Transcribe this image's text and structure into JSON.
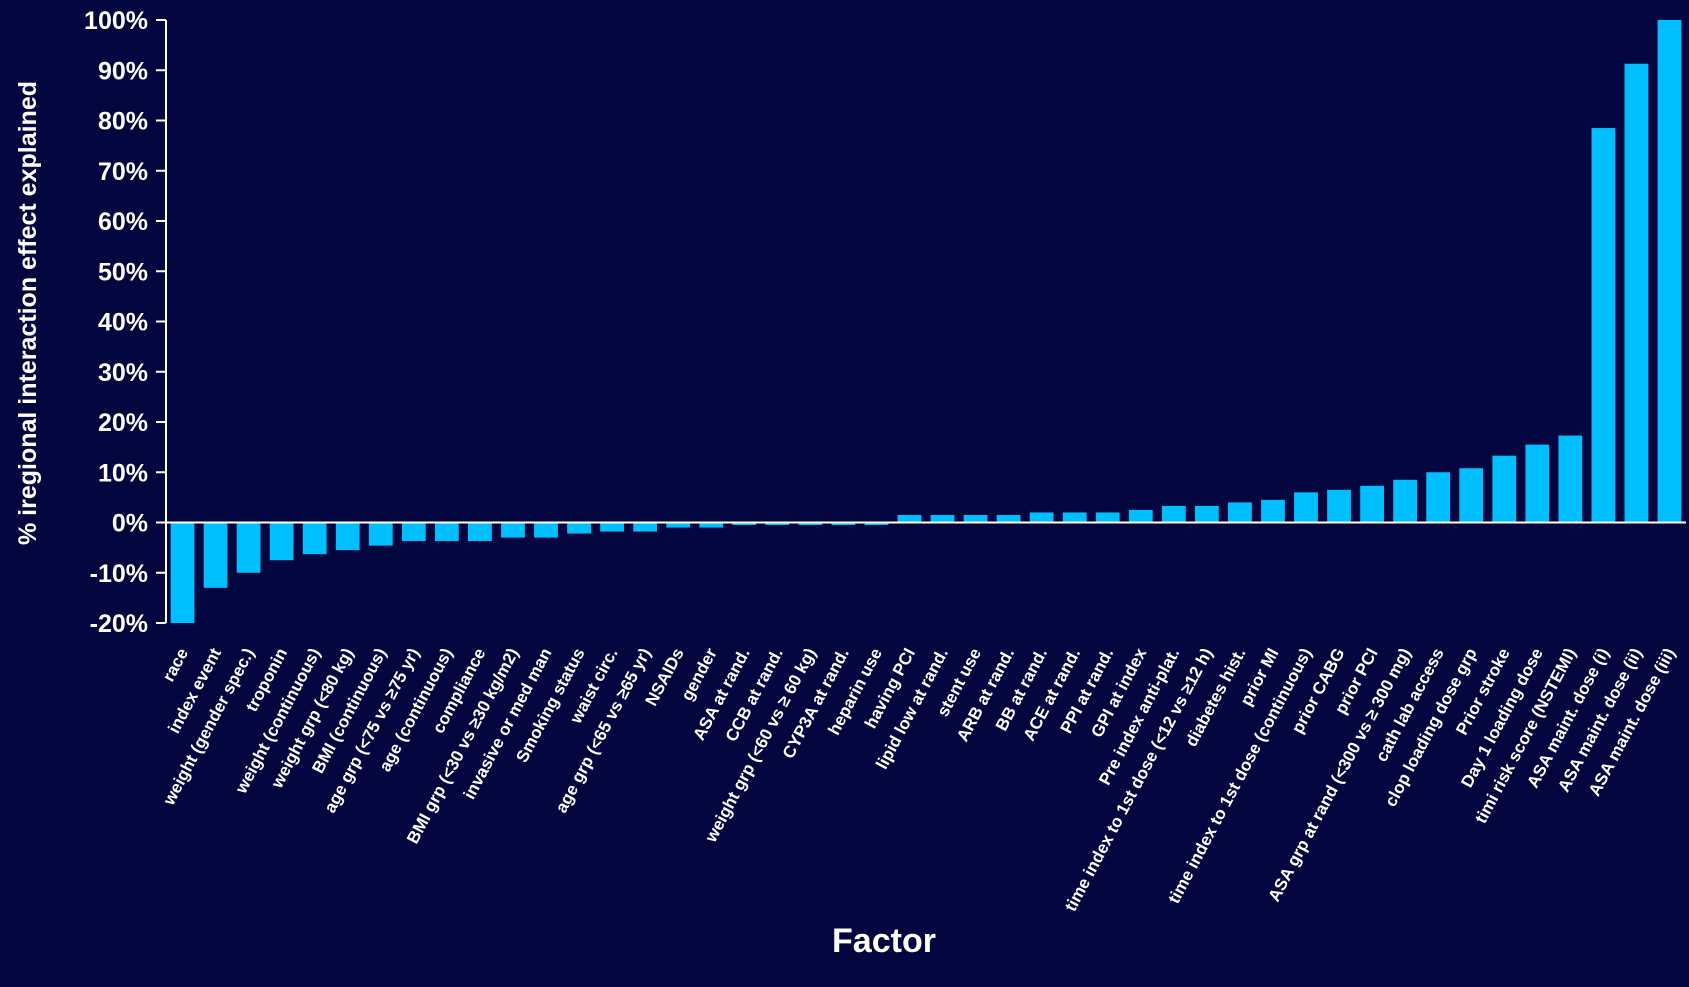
{
  "chart_data": {
    "type": "bar",
    "title": "",
    "xlabel": "Factor",
    "ylabel": "% iregional interaction effect explained",
    "ylim": [
      -20,
      100
    ],
    "y_ticks": [
      "-20%",
      "-10%",
      "0%",
      "10%",
      "20%",
      "30%",
      "40%",
      "50%",
      "60%",
      "70%",
      "80%",
      "90%",
      "100%"
    ],
    "y_tick_values": [
      -20,
      -10,
      0,
      10,
      20,
      30,
      40,
      50,
      60,
      70,
      80,
      90,
      100
    ],
    "grid": false,
    "bar_color": "#00bfff",
    "axis_color": "#ffffff",
    "background": "#04063f",
    "categories": [
      "race",
      "index event",
      "weight (gender spec.)",
      "troponin",
      "weight (continuous)",
      "weight grp (<80 kg)",
      "BMI (continuous)",
      "age grp (<75 vs ≥75 yr)",
      "age (continuous)",
      "compliance",
      "BMI grp (<30 vs ≥30 kg/m2)",
      "invasive or med man",
      "Smoking status",
      "waist circ.",
      "age grp (<65 vs ≥65 yr)",
      "NSAIDs",
      "gender",
      "ASA at rand.",
      "CCB at rand.",
      "weight grp (<60 vs ≥ 60 kg)",
      "CYP3A at rand.",
      "heparin use",
      "having PCI",
      "lipid low at rand.",
      "stent use",
      "ARB at rand.",
      "BB at rand.",
      "ACE at rand.",
      "PPI at rand.",
      "GPI at index",
      "Pre index anti-plat.",
      "time index to 1st dose (<12 vs ≥12 h)",
      "diabetes hist.",
      "prior MI",
      "time index to 1st dose (continuous)",
      "prior CABG",
      "prior PCI",
      "ASA grp at rand (<300 vs ≥ 300 mg)",
      "cath lab access",
      "clop loading dose grp",
      "Prior stroke",
      "Day 1 loading dose",
      "timi risk score (NSTEMI)",
      "ASA maint. dose (i)",
      "ASA maint. dose (ii)",
      "ASA maint. dose (iii)"
    ],
    "values": [
      -20,
      -13,
      -10,
      -7.5,
      -6.3,
      -5.5,
      -4.6,
      -3.7,
      -3.7,
      -3.7,
      -3,
      -3,
      -2.2,
      -1.8,
      -1.8,
      -1,
      -1,
      -0.5,
      -0.5,
      -0.5,
      -0.5,
      -0.5,
      1.5,
      1.5,
      1.5,
      1.5,
      2,
      2,
      2,
      2.5,
      3.3,
      3.3,
      4,
      4.5,
      6,
      6.5,
      7.3,
      8.5,
      10,
      10.8,
      13.3,
      15.5,
      17.3,
      78.5,
      91.3,
      100
    ]
  }
}
